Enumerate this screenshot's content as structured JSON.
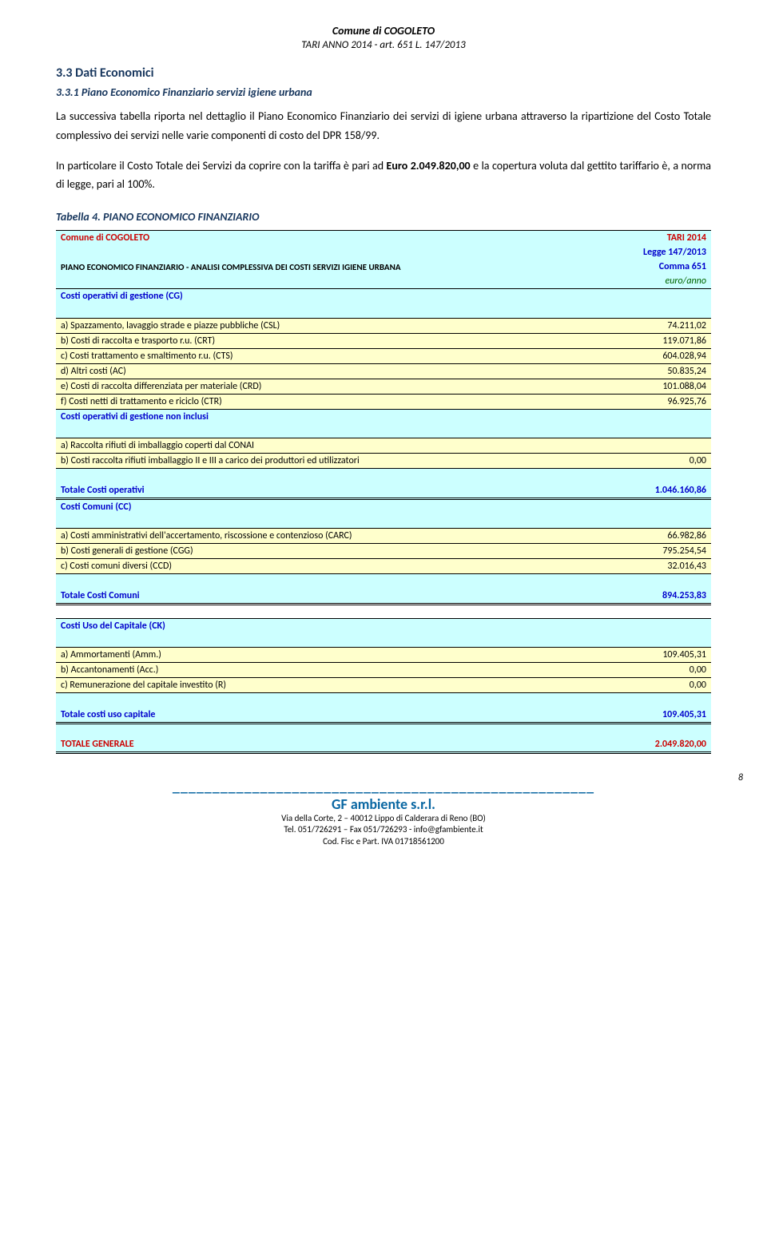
{
  "header": {
    "title": "Comune di COGOLETO",
    "subtitle": "TARI ANNO 2014 - art. 651 L. 147/2013"
  },
  "section": {
    "num": "3.3    Dati Economici",
    "sub": "3.3.1 Piano Economico Finanziario servizi igiene urbana"
  },
  "para1": "La successiva tabella riporta nel dettaglio il Piano Economico Finanziario dei servizi di igiene urbana attraverso la ripartizione del Costo Totale complessivo dei servizi nelle varie componenti di costo del DPR 158/99.",
  "para2a": "In particolare il Costo Totale dei Servizi da coprire con la tariffa è pari ad ",
  "para2bold": "Euro 2.049.820,00",
  "para2b": " e la copertura voluta dal gettito tariffario è, a norma di legge, pari al 100%.",
  "caption": "Tabella 4. PIANO ECONOMICO FINANZIARIO",
  "table": {
    "h1": "Comune di COGOLETO",
    "h1r": "TARI 2014",
    "h2r": "Legge 147/2013",
    "h3": "PIANO ECONOMICO FINANZIARIO - ANALISI COMPLESSIVA DEI COSTI SERVIZI IGIENE URBANA",
    "h3r": "Comma 651",
    "h4r": "euro/anno",
    "cg": "Costi operativi di gestione (CG)",
    "a1": "a) Spazzamento, lavaggio strade e piazze pubbliche (CSL)",
    "a1v": "74.211,02",
    "a2": "b) Costi di raccolta e trasporto  r.u. (CRT)",
    "a2v": "119.071,86",
    "a3": "c) Costi trattamento e smaltimento r.u. (CTS)",
    "a3v": "604.028,94",
    "a4": "d) Altri costi (AC)",
    "a4v": "50.835,24",
    "a5": "e) Costi di raccolta differenziata per materiale (CRD)",
    "a5v": "101.088,04",
    "a6": "f) Costi  netti di trattamento e riciclo (CTR)",
    "a6v": "96.925,76",
    "cgnon": "Costi operativi di gestione non inclusi",
    "b1": "a) Raccolta rifiuti di imballaggio coperti dal CONAI",
    "b2": "b) Costi raccolta rifiuti imballaggio II e III a carico dei produttori ed utilizzatori",
    "b2v": "0,00",
    "totop": "Totale Costi operativi",
    "totopv": "1.046.160,86",
    "cc": "Costi Comuni  (CC)",
    "c1": "a) Costi amministrativi dell'accertamento, riscossione e contenzioso (CARC)",
    "c1v": "66.982,86",
    "c2": "b) Costi generali di gestione (CGG)",
    "c2v": "795.254,54",
    "c3": "c) Costi comuni diversi (CCD)",
    "c3v": "32.016,43",
    "totcc": "Totale Costi Comuni",
    "totccv": "894.253,83",
    "ck": "Costi Uso del Capitale (CK)",
    "d1": "a) Ammortamenti (Amm.)",
    "d1v": "109.405,31",
    "d2": "b) Accantonamenti (Acc.)",
    "d2v": "0,00",
    "d3": "c) Remunerazione del capitale investito (R)",
    "d3v": "0,00",
    "totck": "Totale costi uso capitale",
    "totckv": "109.405,31",
    "totgen": "TOTALE GENERALE",
    "totgenv": "2.049.820,00"
  },
  "footer": {
    "company": "GF ambiente s.r.l.",
    "addr": "Via della Corte, 2 – 40012 Lippo di Calderara di Reno (BO)",
    "tel": "Tel. 051/726291 – Fax 051/726293 - info@gfambiente.it",
    "iva": "Cod. Fisc e Part. IVA 01718561200"
  },
  "pagenum": "8"
}
